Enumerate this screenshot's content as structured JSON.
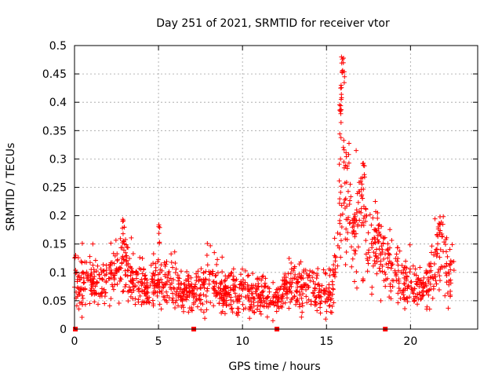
{
  "chart_data": {
    "type": "scatter",
    "title": "Day 251 of 2021, SRMTID for receiver vtor",
    "xlabel": "GPS time / hours",
    "ylabel": "SRMTID / TECUs",
    "xlim": [
      0,
      24
    ],
    "ylim": [
      0,
      0.5
    ],
    "x_ticks": [
      "0",
      "5",
      "10",
      "15",
      "20"
    ],
    "y_ticks": [
      "0",
      "0.05",
      "0.1",
      "0.15",
      "0.2",
      "0.25",
      "0.3",
      "0.35",
      "0.4",
      "0.45",
      "0.5"
    ],
    "x_tick_values": [
      0,
      5,
      10,
      15,
      20
    ],
    "y_tick_values": [
      0,
      0.05,
      0.1,
      0.15,
      0.2,
      0.25,
      0.3,
      0.35,
      0.4,
      0.45,
      0.5
    ],
    "grid": true,
    "marker": "+",
    "series_color": "#ff0000",
    "gap_markers_x": [
      0.05,
      7.1,
      12.05,
      18.5
    ],
    "profile": [
      [
        0.0,
        0.09
      ],
      [
        0.5,
        0.08
      ],
      [
        1.0,
        0.085
      ],
      [
        1.5,
        0.07
      ],
      [
        2.0,
        0.08
      ],
      [
        2.5,
        0.11
      ],
      [
        3.0,
        0.12
      ],
      [
        3.5,
        0.08
      ],
      [
        4.0,
        0.075
      ],
      [
        4.5,
        0.07
      ],
      [
        5.0,
        0.085
      ],
      [
        5.5,
        0.075
      ],
      [
        6.0,
        0.07
      ],
      [
        6.5,
        0.065
      ],
      [
        7.0,
        0.07
      ],
      [
        7.5,
        0.075
      ],
      [
        8.0,
        0.09
      ],
      [
        8.5,
        0.075
      ],
      [
        9.0,
        0.065
      ],
      [
        9.5,
        0.07
      ],
      [
        10.0,
        0.07
      ],
      [
        10.5,
        0.065
      ],
      [
        11.0,
        0.06
      ],
      [
        11.5,
        0.055
      ],
      [
        12.0,
        0.05
      ],
      [
        12.5,
        0.06
      ],
      [
        13.0,
        0.08
      ],
      [
        13.5,
        0.07
      ],
      [
        14.0,
        0.075
      ],
      [
        14.5,
        0.065
      ],
      [
        15.0,
        0.06
      ],
      [
        15.4,
        0.08
      ],
      [
        15.7,
        0.18
      ],
      [
        15.9,
        0.3
      ],
      [
        16.1,
        0.24
      ],
      [
        16.4,
        0.2
      ],
      [
        16.7,
        0.15
      ],
      [
        17.0,
        0.2
      ],
      [
        17.3,
        0.18
      ],
      [
        17.6,
        0.13
      ],
      [
        18.0,
        0.14
      ],
      [
        18.5,
        0.12
      ],
      [
        19.0,
        0.1
      ],
      [
        19.5,
        0.09
      ],
      [
        20.0,
        0.075
      ],
      [
        20.5,
        0.07
      ],
      [
        21.0,
        0.075
      ],
      [
        21.5,
        0.12
      ],
      [
        21.8,
        0.15
      ],
      [
        22.2,
        0.1
      ],
      [
        22.6,
        0.09
      ]
    ],
    "peaks": [
      [
        2.9,
        0.21
      ],
      [
        5.05,
        0.19
      ],
      [
        15.95,
        0.48
      ],
      [
        16.0,
        0.46
      ],
      [
        15.9,
        0.43
      ],
      [
        15.85,
        0.4
      ],
      [
        17.2,
        0.3
      ],
      [
        17.15,
        0.27
      ],
      [
        21.8,
        0.19
      ],
      [
        16.6,
        0.2
      ]
    ]
  }
}
